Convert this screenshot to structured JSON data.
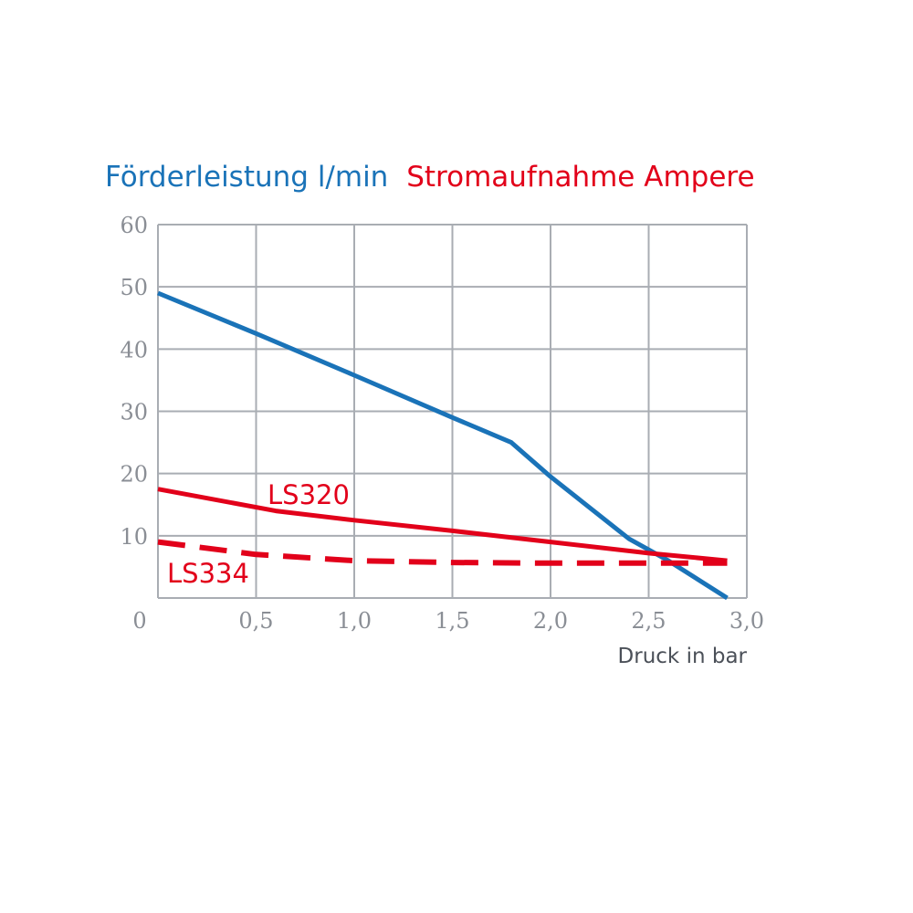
{
  "chart_data": {
    "type": "line",
    "title_left": "Förderleistung l/min",
    "title_right": "Stromaufnahme Ampere",
    "xlabel": "Druck in bar",
    "x_ticks": [
      "0",
      "0,5",
      "1,0",
      "1,5",
      "2,0",
      "2,5",
      "3,0"
    ],
    "y_ticks": [
      "0",
      "10",
      "20",
      "30",
      "40",
      "50",
      "60"
    ],
    "xlim": [
      0,
      3.0
    ],
    "ylim": [
      0,
      60
    ],
    "grid": true,
    "series": [
      {
        "name": "",
        "color": "#1a73b8",
        "dashed": false,
        "x": [
          0,
          0.5,
          1.0,
          1.5,
          1.8,
          2.0,
          2.4,
          2.6,
          2.9
        ],
        "y": [
          49,
          42.5,
          35.8,
          29,
          25,
          19.5,
          9.5,
          6,
          0
        ]
      },
      {
        "name": "LS320",
        "color": "#e2001a",
        "dashed": false,
        "x": [
          0,
          0.6,
          1.0,
          1.5,
          2.0,
          2.5,
          2.9
        ],
        "y": [
          17.5,
          14,
          12.5,
          10.8,
          9,
          7.2,
          6
        ]
      },
      {
        "name": "LS334",
        "color": "#e2001a",
        "dashed": true,
        "x": [
          0,
          0.5,
          1.0,
          1.5,
          2.0,
          2.5,
          2.9
        ],
        "y": [
          9,
          7,
          6,
          5.7,
          5.6,
          5.6,
          5.6
        ]
      }
    ],
    "colors": {
      "blue": "#1a73b8",
      "red": "#e2001a",
      "grid": "#a9adb3",
      "tick": "#8a8e95",
      "xlabel": "#4b5058"
    }
  }
}
